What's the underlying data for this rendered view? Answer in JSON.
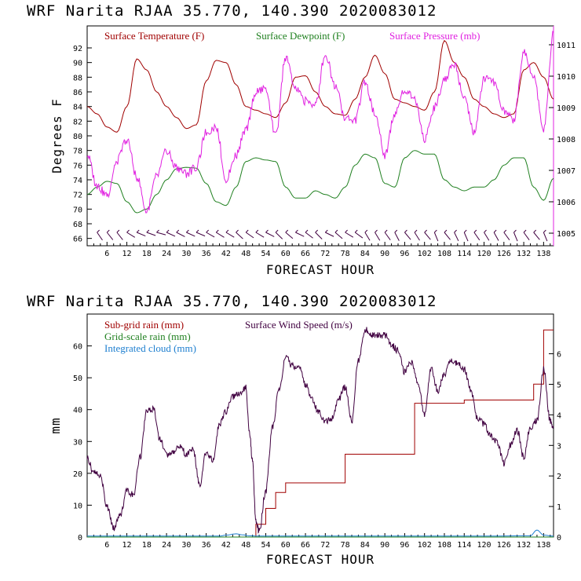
{
  "chart_data": [
    {
      "type": "line",
      "header": "WRF  Narita RJAA   35.770, 140.390  2020083012",
      "title": "",
      "xlabel": "FORECAST HOUR",
      "ylabel": "Degrees F",
      "xlim": [
        0,
        141
      ],
      "ylim": [
        65,
        95
      ],
      "y2lim": [
        1004.6,
        1011.6
      ],
      "xticks": [
        6,
        12,
        18,
        24,
        30,
        36,
        42,
        48,
        54,
        60,
        66,
        72,
        78,
        84,
        90,
        96,
        102,
        108,
        114,
        120,
        126,
        132,
        138
      ],
      "yticks": [
        66,
        68,
        70,
        72,
        74,
        76,
        78,
        80,
        82,
        84,
        86,
        88,
        90,
        92
      ],
      "y2ticks": [
        1005,
        1006,
        1007,
        1008,
        1009,
        1010,
        1011
      ],
      "series": [
        {
          "name": "Surface Temperature (F)",
          "color": "#a00000",
          "axis": "left",
          "x": [
            0,
            3,
            6,
            9,
            12,
            15,
            18,
            21,
            24,
            27,
            30,
            33,
            36,
            39,
            42,
            45,
            48,
            51,
            54,
            57,
            60,
            63,
            66,
            69,
            72,
            75,
            78,
            81,
            84,
            87,
            90,
            93,
            96,
            99,
            102,
            105,
            108,
            111,
            114,
            117,
            120,
            123,
            126,
            129,
            132,
            135,
            138,
            141
          ],
          "values": [
            84,
            83,
            81.2,
            80.5,
            84,
            90.5,
            89,
            86,
            84,
            82.5,
            81,
            81.5,
            87.5,
            90.3,
            90,
            87,
            84,
            83.5,
            83,
            82.5,
            84.5,
            88,
            88.2,
            86,
            84,
            83,
            82.8,
            85,
            88,
            91,
            88.5,
            85,
            84.5,
            84,
            83.5,
            86,
            93,
            90,
            88,
            85,
            84,
            83,
            82.5,
            83,
            89,
            90,
            88,
            85
          ]
        },
        {
          "name": "Surface Dewpoint (F)",
          "color": "#208020",
          "axis": "left",
          "x": [
            0,
            3,
            6,
            9,
            12,
            15,
            18,
            21,
            24,
            27,
            30,
            33,
            36,
            39,
            42,
            45,
            48,
            51,
            54,
            57,
            60,
            63,
            66,
            69,
            72,
            75,
            78,
            81,
            84,
            87,
            90,
            93,
            96,
            99,
            102,
            105,
            108,
            111,
            114,
            117,
            120,
            123,
            126,
            129,
            132,
            135,
            138,
            141
          ],
          "values": [
            72,
            73,
            73.8,
            73.5,
            71,
            69.5,
            70,
            72,
            74,
            75.5,
            75.7,
            75.6,
            73.5,
            71,
            70.5,
            73,
            76.5,
            77,
            76.7,
            76.5,
            73,
            71.5,
            71.5,
            72.5,
            72,
            71.5,
            73,
            76,
            77.5,
            77,
            73.5,
            73,
            77,
            78,
            77.5,
            77.5,
            74,
            73,
            72.5,
            73,
            73,
            74,
            76,
            77,
            77,
            73,
            71.2,
            74.2
          ]
        },
        {
          "name": "Surface Pressure (mb)",
          "color": "#e020e0",
          "axis": "right",
          "x": [
            0,
            3,
            6,
            9,
            12,
            15,
            18,
            21,
            24,
            27,
            30,
            33,
            36,
            39,
            42,
            45,
            48,
            51,
            54,
            57,
            60,
            63,
            66,
            69,
            72,
            75,
            78,
            81,
            84,
            87,
            90,
            93,
            96,
            99,
            102,
            105,
            108,
            111,
            114,
            117,
            120,
            123,
            126,
            129,
            132,
            135,
            138,
            141
          ],
          "values": [
            1007.5,
            1006.5,
            1006.2,
            1007.3,
            1008,
            1006.8,
            1005.7,
            1006.8,
            1007.6,
            1007.1,
            1006.9,
            1007.1,
            1008.2,
            1008.4,
            1006.7,
            1007.5,
            1008.3,
            1009.5,
            1009.6,
            1008.1,
            1010.6,
            1009.6,
            1009.2,
            1009.1,
            1010.7,
            1009.7,
            1008.7,
            1008.6,
            1009.8,
            1008.8,
            1007.5,
            1008.8,
            1009.6,
            1009.3,
            1008,
            1009,
            1009.9,
            1010.4,
            1009.3,
            1008.2,
            1009.9,
            1009.8,
            1008.9,
            1008.6,
            1010.8,
            1010,
            1008.3,
            1011.4
          ]
        }
      ],
      "wind_barbs": true
    },
    {
      "type": "line",
      "header": "WRF  Narita RJAA   35.770, 140.390  2020083012",
      "title": "",
      "xlabel": "FORECAST HOUR",
      "ylabel": "mm",
      "xlim": [
        0,
        141
      ],
      "ylim": [
        0,
        70
      ],
      "y2lim": [
        0,
        7.3
      ],
      "xticks": [
        6,
        12,
        18,
        24,
        30,
        36,
        42,
        48,
        54,
        60,
        66,
        72,
        78,
        84,
        90,
        96,
        102,
        108,
        114,
        120,
        126,
        132,
        138
      ],
      "yticks": [
        0,
        10,
        20,
        30,
        40,
        50,
        60
      ],
      "y2ticks": [
        0,
        1,
        2,
        3,
        4,
        5,
        6
      ],
      "series": [
        {
          "name": "Sub-grid rain (mm)",
          "color": "#a00000",
          "axis": "left",
          "x": [
            0,
            50,
            51,
            54,
            57,
            60,
            63,
            66,
            69,
            72,
            75,
            78,
            81,
            84,
            87,
            90,
            93,
            96,
            99,
            102,
            105,
            108,
            111,
            114,
            117,
            120,
            123,
            126,
            129,
            132,
            135,
            138,
            141
          ],
          "values": [
            0,
            0,
            4,
            9,
            14,
            17,
            17,
            17,
            17,
            17,
            17,
            26,
            26,
            26,
            26,
            26,
            26,
            26,
            42,
            42,
            42,
            42,
            42,
            43,
            43,
            43,
            43,
            43,
            43,
            43,
            48,
            65,
            65
          ]
        },
        {
          "name": "Grid-scale rain (mm)",
          "color": "#208020",
          "axis": "left",
          "x": [
            0,
            141
          ],
          "values": [
            0,
            0
          ]
        },
        {
          "name": "Integrated cloud (mm)",
          "color": "#2080d0",
          "axis": "left",
          "x": [
            0,
            40,
            42,
            45,
            47,
            49,
            52,
            60,
            80,
            100,
            120,
            134,
            136,
            138,
            141
          ],
          "values": [
            0.3,
            0.3,
            0.6,
            1.0,
            0.7,
            0.4,
            0.3,
            0.3,
            0.3,
            0.3,
            0.3,
            0.4,
            2.2,
            0.6,
            0.3
          ]
        },
        {
          "name": "Surface Wind Speed (m/s)",
          "color": "#400040",
          "axis": "right",
          "x": [
            0,
            2,
            4,
            6,
            8,
            10,
            12,
            14,
            16,
            18,
            20,
            22,
            24,
            26,
            28,
            30,
            32,
            34,
            36,
            38,
            40,
            42,
            44,
            46,
            48,
            49,
            50,
            51,
            52,
            54,
            56,
            58,
            60,
            62,
            64,
            66,
            68,
            70,
            72,
            74,
            76,
            78,
            80,
            82,
            84,
            86,
            88,
            90,
            92,
            94,
            96,
            98,
            100,
            102,
            104,
            106,
            108,
            110,
            112,
            114,
            116,
            118,
            120,
            122,
            124,
            126,
            128,
            130,
            132,
            134,
            136,
            138,
            140,
            141
          ],
          "values": [
            2.6,
            2.1,
            2.0,
            1.0,
            0.3,
            0.7,
            1.5,
            1.4,
            2.6,
            4.1,
            4.2,
            3.2,
            2.7,
            2.8,
            3.0,
            2.7,
            2.9,
            1.7,
            2.8,
            2.5,
            3.7,
            4.1,
            4.6,
            4.7,
            4.9,
            3.5,
            2.5,
            0.5,
            0.2,
            1.5,
            3.6,
            4.8,
            5.9,
            5.6,
            5.6,
            5.0,
            4.5,
            4.1,
            3.8,
            3.9,
            4.5,
            4.9,
            3.8,
            5.8,
            6.8,
            6.6,
            6.6,
            6.6,
            6.3,
            6.1,
            5.4,
            5.7,
            5.1,
            4.0,
            5.5,
            4.8,
            5.3,
            5.8,
            5.7,
            5.5,
            4.8,
            3.9,
            3.7,
            3.3,
            3.1,
            2.4,
            3.0,
            3.5,
            2.6,
            3.6,
            3.8,
            5.5,
            3.8,
            3.6
          ]
        }
      ]
    }
  ]
}
